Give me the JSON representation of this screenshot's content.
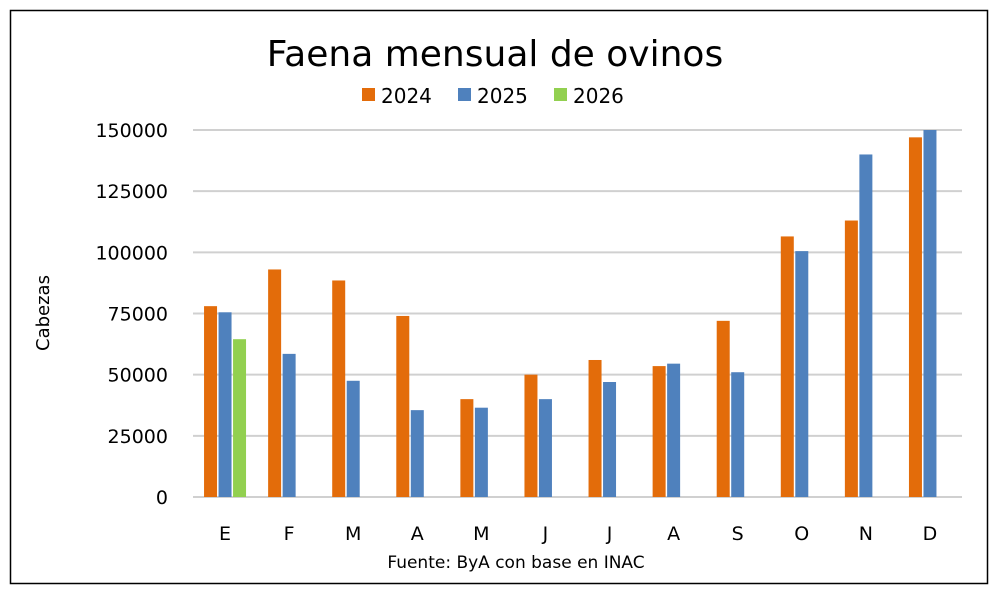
{
  "chart_data": {
    "type": "bar",
    "title": "Faena mensual de ovinos",
    "ylabel": "Cabezas",
    "xlabel": "",
    "source": "Fuente: ByA con base en INAC",
    "categories": [
      "E",
      "F",
      "M",
      "A",
      "M",
      "J",
      "J",
      "A",
      "S",
      "O",
      "N",
      "D"
    ],
    "yticks": [
      "0",
      "25000",
      "50000",
      "75000",
      "100000",
      "125000",
      "150000"
    ],
    "ylim": [
      0,
      150000
    ],
    "grid": true,
    "legend_position": "top",
    "series": [
      {
        "name": "2024",
        "color": "#E36C0A",
        "values": [
          78000,
          93000,
          88500,
          74000,
          40000,
          50000,
          56000,
          53500,
          72000,
          106500,
          113000,
          147000
        ]
      },
      {
        "name": "2025",
        "color": "#4F81BD",
        "values": [
          75500,
          58500,
          47500,
          35500,
          36500,
          40000,
          47000,
          54500,
          51000,
          100500,
          140000,
          150000
        ]
      },
      {
        "name": "2026",
        "color": "#92D050",
        "values": [
          64500,
          null,
          null,
          null,
          null,
          null,
          null,
          null,
          null,
          null,
          null,
          null
        ]
      }
    ]
  }
}
